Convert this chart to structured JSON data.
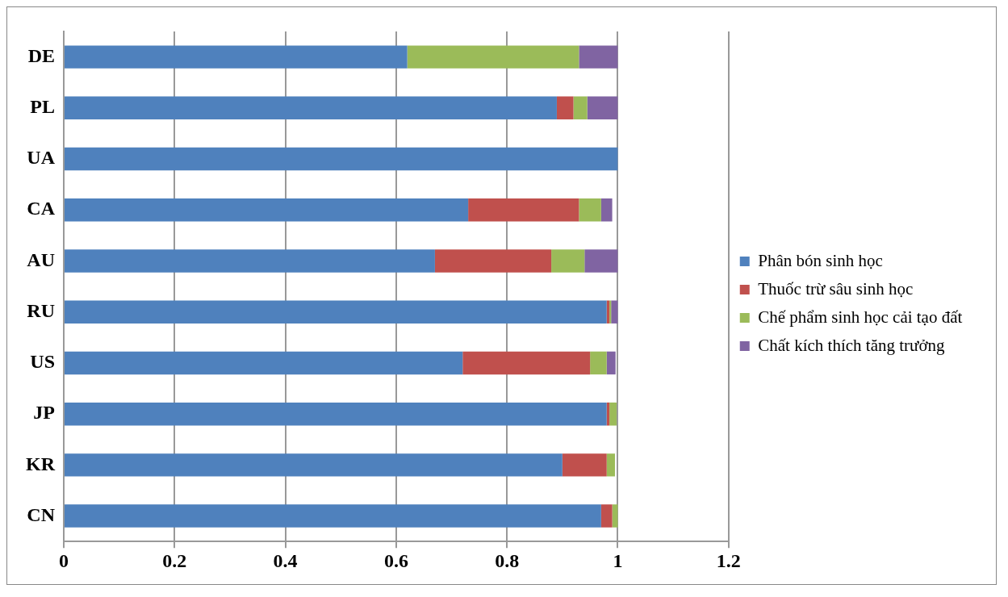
{
  "chart_data": {
    "type": "bar",
    "orientation": "horizontal",
    "stacked": true,
    "categories": [
      "DE",
      "PL",
      "UA",
      "CA",
      "AU",
      "RU",
      "US",
      "JP",
      "KR",
      "CN"
    ],
    "series": [
      {
        "name": "Phân bón sinh học",
        "color": "#4f81bd",
        "values": [
          0.62,
          0.89,
          1,
          0.73,
          0.67,
          0.98,
          0.72,
          0.98,
          0.9,
          0.97
        ]
      },
      {
        "name": "Thuốc trừ sâu sinh học",
        "color": "#c0504d",
        "values": [
          0,
          0.03,
          0,
          0.2,
          0.21,
          0.005,
          0.23,
          0.005,
          0.08,
          0.02
        ]
      },
      {
        "name": "Chế phẩm sinh học cải tạo đất",
        "color": "#9bbb59",
        "values": [
          0.31,
          0.025,
          0,
          0.04,
          0.06,
          0.003,
          0.03,
          0.013,
          0.015,
          0.01
        ]
      },
      {
        "name": "Chất kích thích tăng trưởng",
        "color": "#8064a2",
        "values": [
          0.07,
          0.055,
          0,
          0.02,
          0.06,
          0.012,
          0.016,
          0,
          0,
          0
        ]
      }
    ],
    "xlim": [
      0,
      1.2
    ],
    "xticks": [
      0,
      0.2,
      0.4,
      0.6,
      0.8,
      1,
      1.2
    ],
    "grid": "x",
    "legend": "right"
  }
}
